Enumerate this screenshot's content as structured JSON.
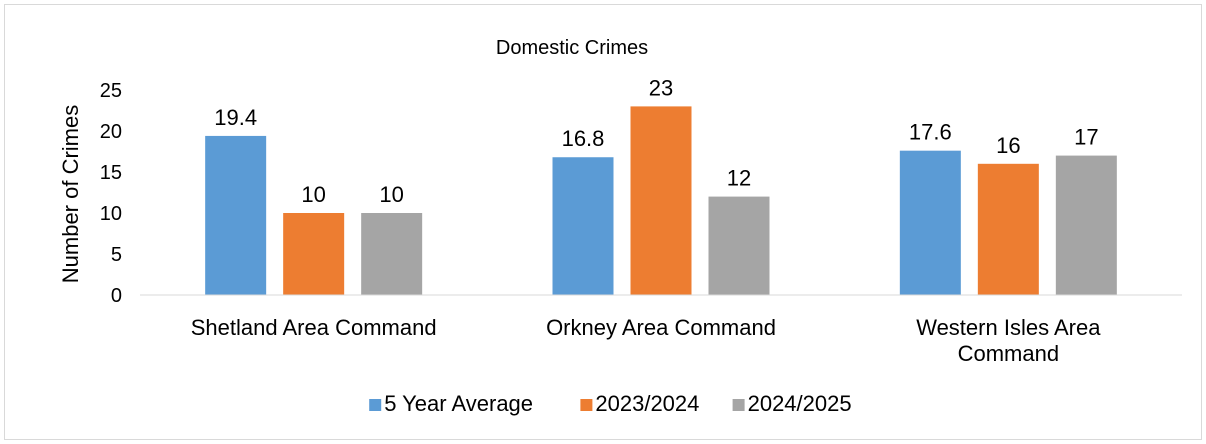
{
  "chart_data": {
    "type": "bar",
    "title": "Domestic Crimes",
    "xlabel": "",
    "ylabel": "Number of Crimes",
    "categories": [
      [
        "Shetland Area Command"
      ],
      [
        "Orkney Area Command"
      ],
      [
        "Western Isles Area",
        "Command"
      ]
    ],
    "series": [
      {
        "name": "5 Year Average",
        "values": [
          19.4,
          16.8,
          17.6
        ],
        "labels": [
          "19.4",
          "16.8",
          "17.6"
        ],
        "color": "#5b9bd5"
      },
      {
        "name": "2023/2024",
        "values": [
          10,
          23,
          16
        ],
        "labels": [
          "10",
          "23",
          "16"
        ],
        "color": "#ed7d31"
      },
      {
        "name": "2024/2025",
        "values": [
          10,
          12,
          17
        ],
        "labels": [
          "10",
          "12",
          "17"
        ],
        "color": "#a5a5a5"
      }
    ],
    "ylim": [
      0,
      25
    ],
    "yticks": [
      "0",
      "5",
      "10",
      "15",
      "20",
      "25"
    ],
    "grid": false,
    "legend_position": "bottom",
    "axis_color": "#d9d9d9"
  }
}
